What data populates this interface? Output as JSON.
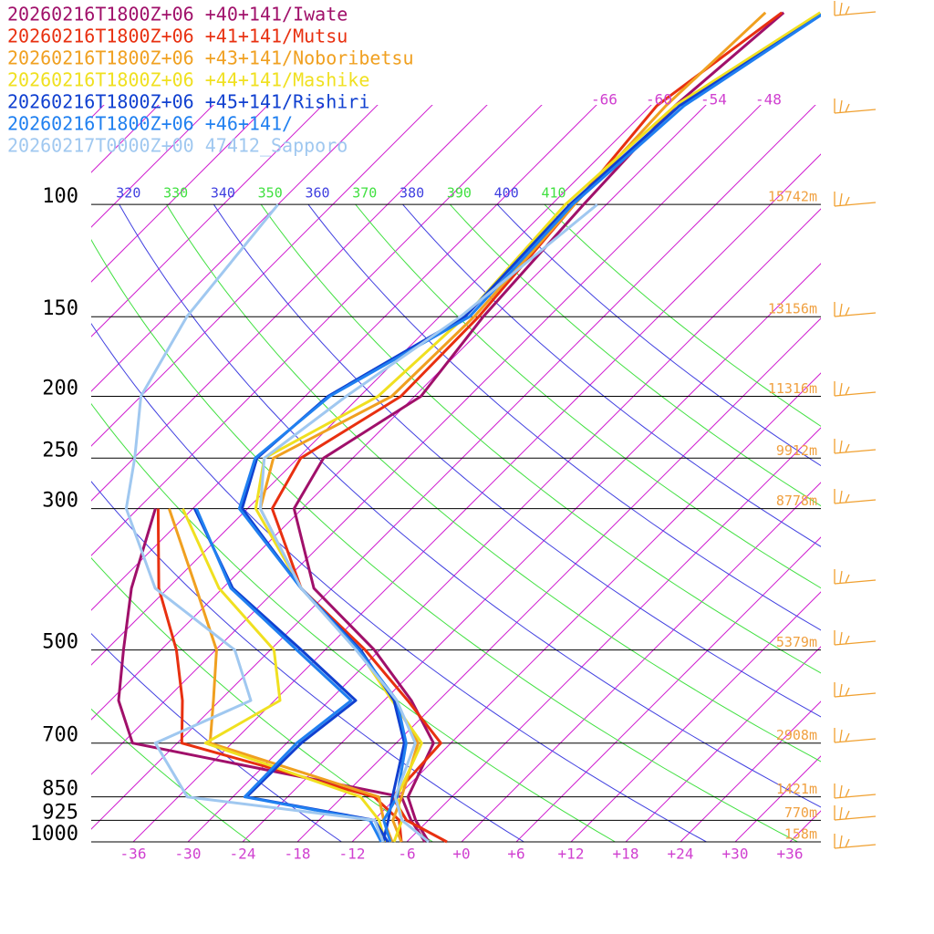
{
  "chart_data": {
    "type": "skewt",
    "pressure_levels": [
      1000,
      925,
      850,
      700,
      600,
      500,
      400,
      300,
      250,
      200,
      150,
      100,
      70,
      50
    ],
    "series": [
      {
        "name": "20260216T1800Z+06 +40+141/Iwate",
        "color": "#a0106a",
        "temperature": [
          -3.6,
          -7.4,
          -10.8,
          -13.9,
          -21.0,
          -30.6,
          -44.0,
          -54.9,
          -57.2,
          -53.3,
          -55.2,
          -56.5,
          -57.3,
          -55.6
        ],
        "dewpoint": [
          -4.0,
          -7.9,
          -11.5,
          -46.9,
          -53.1,
          -58.1,
          -64.0,
          -70.1,
          null,
          null,
          null,
          null,
          null,
          null
        ]
      },
      {
        "name": "20260216T1800Z+06 +41+141/Mutsu",
        "color": "#e83010",
        "temperature": [
          -1.6,
          -8.4,
          -12.5,
          -13.1,
          -21.4,
          -31.6,
          -45.4,
          -57.3,
          -59.7,
          -55.5,
          -55.7,
          -57.5,
          -59.3,
          -55.8
        ],
        "dewpoint": [
          -6.6,
          -9.2,
          -14.5,
          -41.5,
          -46.1,
          -52.3,
          -61.0,
          -69.8,
          null,
          null,
          null,
          null,
          null,
          null
        ]
      },
      {
        "name": "20260216T1800Z+06 +43+141/Noboribetsu",
        "color": "#f0a020",
        "temperature": [
          -6.6,
          -9.9,
          -11.5,
          -15.6,
          -22.9,
          -32.1,
          -45.4,
          -58.6,
          -62.7,
          -56.5,
          -56.2,
          -57.5,
          -58.3,
          -57.6
        ],
        "dewpoint": [
          -7.6,
          -10.9,
          -14.0,
          -38.4,
          -42.7,
          -47.9,
          -56.9,
          -68.6,
          null,
          null,
          null,
          null,
          null,
          null
        ]
      },
      {
        "name": "20260216T1800Z+06 +44+141/Mashike",
        "color": "#f0e020",
        "temperature": [
          -7.4,
          -8.9,
          -12.0,
          -15.2,
          -23.1,
          -32.4,
          -45.4,
          -59.1,
          -63.7,
          -58.0,
          -57.2,
          -58.5,
          -57.3,
          -51.6
        ],
        "dewpoint": [
          -8.4,
          -11.4,
          -16.0,
          -38.9,
          -35.4,
          -41.6,
          -54.4,
          -67.1,
          null,
          null,
          null,
          null,
          null,
          null
        ]
      },
      {
        "name": "20260216T1800Z+06 +45+141/Rishiri",
        "color": "#1040d0",
        "temperature": [
          -8.6,
          -10.4,
          -12.5,
          -17.1,
          -22.9,
          -32.1,
          -45.4,
          -60.6,
          -64.5,
          -63.5,
          -57.2,
          -58.0,
          -56.8,
          -51.1
        ],
        "dewpoint": [
          -8.1,
          -11.9,
          -28.5,
          -28.4,
          -27.1,
          -38.6,
          -52.9,
          -65.8,
          null,
          null,
          null,
          null,
          null,
          null
        ]
      },
      {
        "name": "20260216T1800Z+06 +46+141/",
        "color": "#2080f0",
        "temperature": [
          -7.8,
          -10.9,
          -12.0,
          -16.9,
          -22.6,
          -32.3,
          -45.4,
          -60.9,
          -64.7,
          -63.3,
          -56.7,
          -57.7,
          -56.3,
          -51.1
        ],
        "dewpoint": [
          -8.8,
          -12.4,
          -28.7,
          -28.9,
          -27.6,
          -39.1,
          -53.1,
          -65.6,
          null,
          null,
          null,
          null,
          null,
          null
        ]
      },
      {
        "name": "20260217T0000Z+00 47412_Sapporo",
        "color": "#a0c8f0",
        "temperature": [
          -3.6,
          -8.9,
          -12.2,
          -15.9,
          -22.6,
          -32.6,
          -45.4,
          -58.6,
          -63.7,
          -61.5,
          -57.7,
          -55.0,
          null,
          null
        ],
        "dewpoint": [
          -8.6,
          -11.9,
          -35.0,
          -44.4,
          -38.6,
          -45.9,
          -61.4,
          -73.3,
          -77.9,
          -84.0,
          -87.7,
          -90.0,
          null,
          null
        ]
      }
    ],
    "yticks": [
      100,
      150,
      200,
      250,
      300,
      500,
      700,
      850,
      925,
      1000
    ],
    "heights": [
      "15742m",
      "13156m",
      "11316m",
      "9912m",
      "8778m",
      "5379m",
      "2908m",
      "1421m",
      "770m",
      "158m"
    ],
    "xticks": [
      -36,
      -30,
      -24,
      -18,
      -12,
      -6,
      {
        "value": 0,
        "label": "+0"
      },
      {
        "value": 6,
        "label": "+6"
      },
      {
        "value": 12,
        "label": "+12"
      },
      {
        "value": 18,
        "label": "+18"
      },
      {
        "value": 24,
        "label": "+24"
      },
      {
        "value": 30,
        "label": "+30"
      },
      {
        "value": 36,
        "label": "+36"
      }
    ],
    "isotherms": [
      -120,
      -114,
      -108,
      -102,
      -96,
      -90,
      -84,
      -78,
      -72,
      -66,
      -60,
      -54,
      -48,
      -42,
      -36,
      -30,
      -24,
      -18,
      -12,
      -6,
      0,
      6,
      12,
      18,
      24,
      30,
      36
    ],
    "isotherm_labels": [
      -66,
      -60,
      -54,
      -48
    ],
    "theta_lines": [
      250,
      260,
      270,
      280,
      290,
      300,
      310,
      320,
      330,
      340,
      350,
      360,
      370,
      380,
      390,
      400,
      410
    ],
    "theta_labels": [
      320,
      330,
      340,
      350,
      360,
      370,
      380,
      390,
      400,
      410
    ]
  }
}
